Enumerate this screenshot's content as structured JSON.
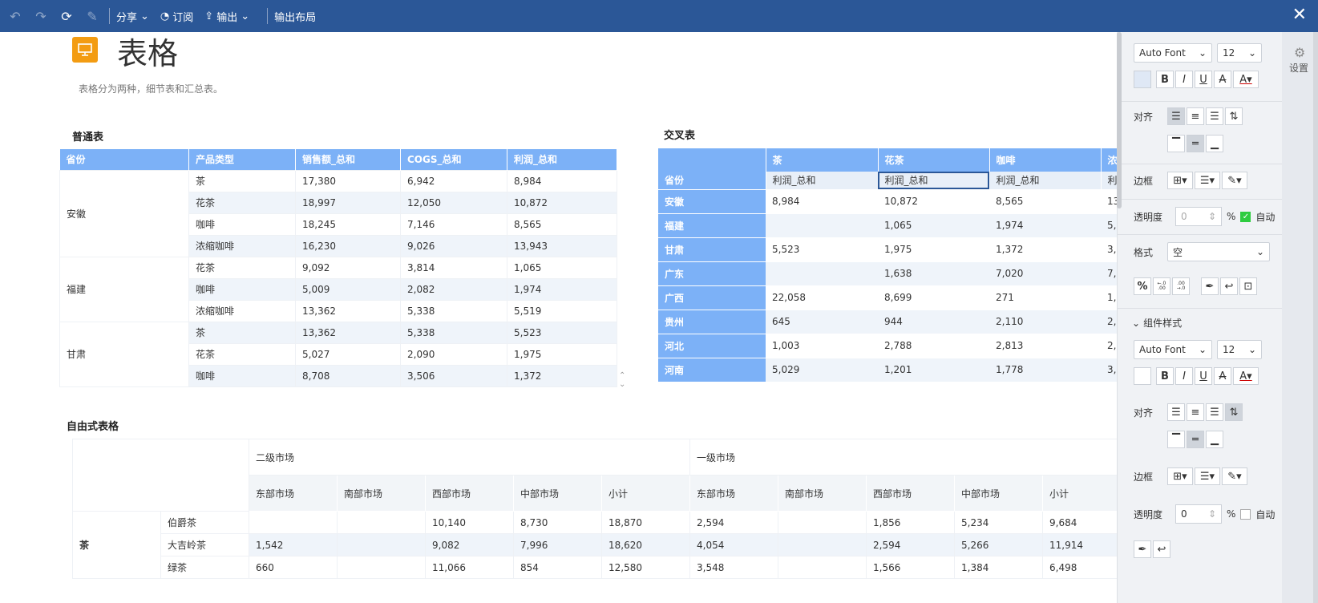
{
  "toolbar": {
    "share": "分享",
    "subscribe": "订阅",
    "export": "输出",
    "export_layout": "输出布局"
  },
  "page": {
    "title": "表格",
    "description": "表格分为两种，细节表和汇总表。"
  },
  "sections": {
    "normal": "普通表",
    "cross": "交叉表",
    "free": "自由式表格"
  },
  "normal_table": {
    "headers": [
      "省份",
      "产品类型",
      "销售额_总和",
      "COGS_总和",
      "利润_总和"
    ],
    "groups": [
      {
        "province": "安徽",
        "rows": [
          [
            "茶",
            "17,380",
            "6,942",
            "8,984"
          ],
          [
            "花茶",
            "18,997",
            "12,050",
            "10,872"
          ],
          [
            "咖啡",
            "18,245",
            "7,146",
            "8,565"
          ],
          [
            "浓缩咖啡",
            "16,230",
            "9,026",
            "13,943"
          ]
        ]
      },
      {
        "province": "福建",
        "rows": [
          [
            "花茶",
            "9,092",
            "3,814",
            "1,065"
          ],
          [
            "咖啡",
            "5,009",
            "2,082",
            "1,974"
          ],
          [
            "浓缩咖啡",
            "13,362",
            "5,338",
            "5,519"
          ]
        ]
      },
      {
        "province": "甘肃",
        "rows": [
          [
            "茶",
            "13,362",
            "5,338",
            "5,523"
          ],
          [
            "花茶",
            "5,027",
            "2,090",
            "1,975"
          ],
          [
            "咖啡",
            "8,708",
            "3,506",
            "1,372"
          ]
        ]
      }
    ]
  },
  "cross_table": {
    "col_headers": [
      "茶",
      "花茶",
      "咖啡",
      "浓"
    ],
    "row_label": "省份",
    "measure": "利润_总和",
    "measure_cut": "利",
    "rows": [
      {
        "p": "安徽",
        "v": [
          "8,984",
          "10,872",
          "8,565",
          "13"
        ]
      },
      {
        "p": "福建",
        "v": [
          "",
          "1,065",
          "1,974",
          "5,"
        ]
      },
      {
        "p": "甘肃",
        "v": [
          "5,523",
          "1,975",
          "1,372",
          "3,"
        ]
      },
      {
        "p": "广东",
        "v": [
          "",
          "1,638",
          "7,020",
          "7,"
        ]
      },
      {
        "p": "广西",
        "v": [
          "22,058",
          "8,699",
          "271",
          "1,"
        ]
      },
      {
        "p": "贵州",
        "v": [
          "645",
          "944",
          "2,110",
          "2,"
        ]
      },
      {
        "p": "河北",
        "v": [
          "1,003",
          "2,788",
          "2,813",
          "2,"
        ]
      },
      {
        "p": "河南",
        "v": [
          "5,029",
          "1,201",
          "1,778",
          "3,"
        ]
      }
    ]
  },
  "free_table": {
    "markets": [
      "二级市场",
      "一级市场"
    ],
    "subs": [
      "东部市场",
      "南部市场",
      "西部市场",
      "中部市场",
      "小计",
      "东部市场",
      "南部市场",
      "西部市场",
      "中部市场",
      "小计"
    ],
    "group": "茶",
    "rows": [
      {
        "name": "伯爵茶",
        "v": [
          "",
          "",
          "10,140",
          "8,730",
          "18,870",
          "2,594",
          "",
          "1,856",
          "5,234",
          "9,684"
        ]
      },
      {
        "name": "大吉岭茶",
        "v": [
          "1,542",
          "",
          "9,082",
          "7,996",
          "18,620",
          "4,054",
          "",
          "2,594",
          "5,266",
          "11,914"
        ]
      },
      {
        "name": "绿茶",
        "v": [
          "660",
          "",
          "11,066",
          "854",
          "12,580",
          "3,548",
          "",
          "1,566",
          "1,384",
          "6,498"
        ]
      }
    ]
  },
  "panel": {
    "font1": "Auto Font",
    "size1": "12",
    "align_label": "对齐",
    "border_label": "边框",
    "opacity_label": "透明度",
    "opacity_val1": "0",
    "percent": "%",
    "auto_label": "自动",
    "format_label": "格式",
    "format_val": "空",
    "component_style": "组件样式",
    "font2": "Auto Font",
    "size2": "12",
    "opacity_val2": "0",
    "fmt_percent": "%",
    "fmt_dec_left": "←.0 .00",
    "fmt_dec_right": ".00 →.0"
  },
  "sidebar": {
    "settings": "设置"
  }
}
